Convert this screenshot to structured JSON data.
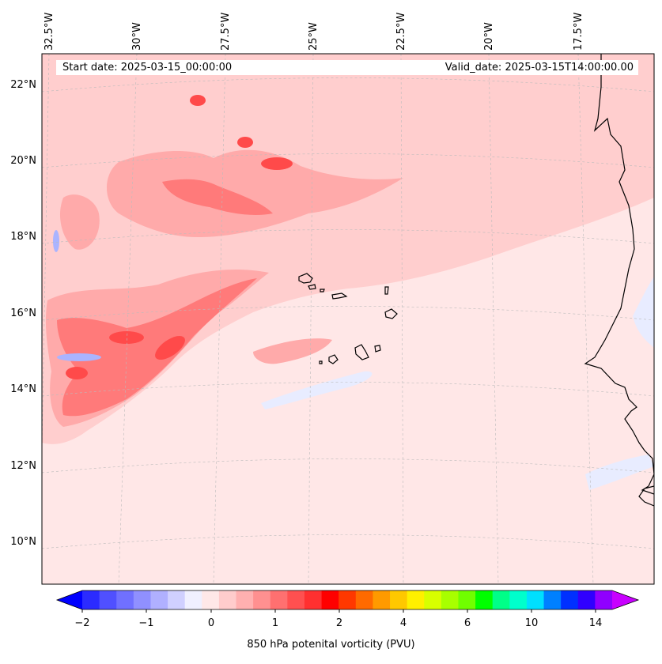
{
  "map": {
    "start_date": "Start date: 2025-03-15_00:00:00",
    "valid_date": "Valid_date: 2025-03-15T14:00:00.00",
    "longitude_labels": [
      "32.5°W",
      "30°W",
      "27.5°W",
      "25°W",
      "22.5°W",
      "20°W",
      "17.5°W"
    ],
    "latitude_labels": [
      "22°N",
      "20°N",
      "18°N",
      "16°N",
      "14°N",
      "12°N",
      "10°N"
    ],
    "field_colors": {
      "background": "#ffe7e7",
      "light_red": "#ffcece",
      "mid_red": "#ffaaaa",
      "strong_red": "#ff7a7a",
      "very_strong_red": "#ff4a4a",
      "light_blue": "#e8ecff",
      "blue": "#aab4ff",
      "coastline": "#000000"
    }
  },
  "colorbar": {
    "label": "850 hPa potenital vorticity (PVU)",
    "tick_labels": [
      "−2",
      "−1",
      "0",
      "1",
      "2",
      "4",
      "6",
      "10",
      "14"
    ],
    "colors": [
      "#0000ff",
      "#2b2bff",
      "#5050ff",
      "#7070ff",
      "#9090ff",
      "#b0b0ff",
      "#d0d0ff",
      "#f0f0ff",
      "#ffe8e8",
      "#ffcccc",
      "#ffb0b0",
      "#ff9090",
      "#ff7070",
      "#ff5050",
      "#ff3030",
      "#ff0000",
      "#ff3800",
      "#ff6a00",
      "#ff9a00",
      "#ffc800",
      "#fff000",
      "#d8ff00",
      "#a8ff00",
      "#70ff00",
      "#00ff00",
      "#00ff88",
      "#00ffcc",
      "#00e0ff",
      "#0080ff",
      "#0030ff",
      "#3000ff",
      "#9000ff",
      "#c800ff"
    ]
  }
}
